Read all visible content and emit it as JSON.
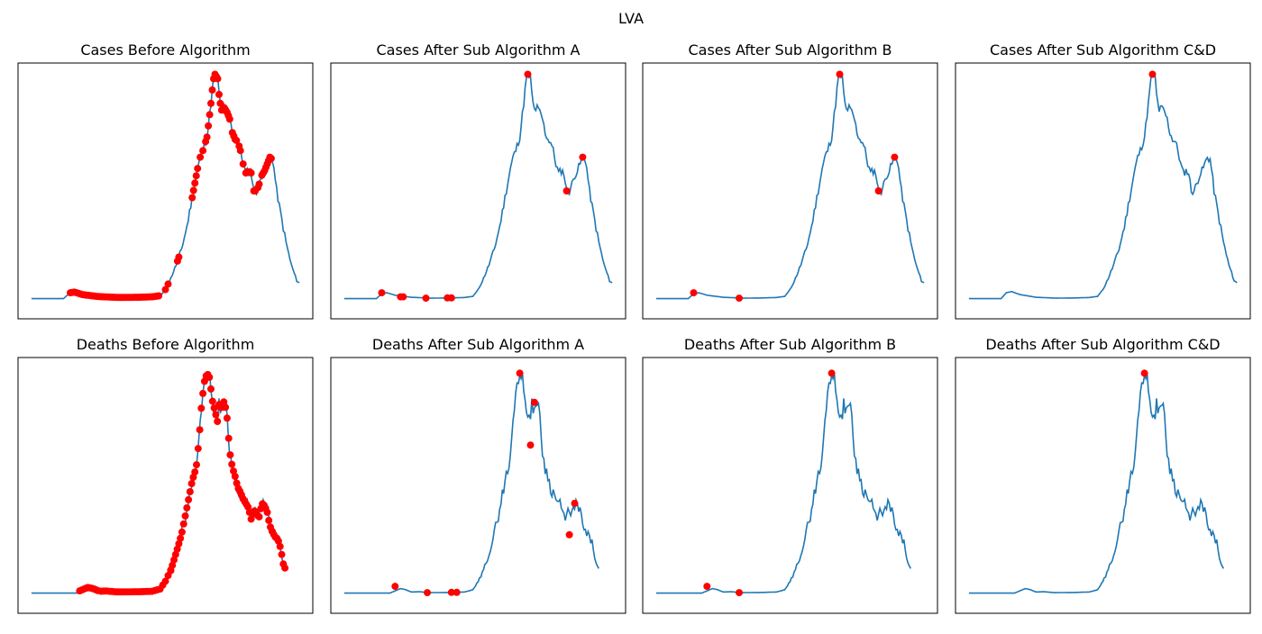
{
  "figure": {
    "suptitle": "LVA",
    "colors": {
      "line": "#1f77b4",
      "marker": "#ff0000",
      "frame": "#000000",
      "background": "#ffffff"
    }
  },
  "chart_data": [
    {
      "type": "line",
      "title": "Cases Before Algorithm",
      "x": [
        0,
        2,
        4,
        6,
        8,
        10,
        12,
        13,
        14,
        15,
        16,
        17,
        18,
        19,
        20,
        22,
        24,
        26,
        28,
        30,
        32,
        34,
        36,
        38,
        40,
        42,
        44,
        46,
        48,
        50,
        52,
        54,
        56,
        58,
        60,
        62,
        64,
        66,
        68,
        70,
        72,
        74,
        76,
        78,
        80,
        82,
        84,
        86,
        88,
        90,
        92,
        94,
        96,
        98,
        100,
        102,
        104,
        106,
        108,
        110,
        112,
        114,
        116,
        118,
        120,
        122,
        124,
        126,
        128,
        130,
        132,
        134,
        136,
        138,
        140,
        142,
        144,
        146,
        148,
        150,
        152,
        154,
        156,
        158,
        160,
        162,
        164,
        166,
        168,
        170,
        172,
        174,
        176,
        178,
        180,
        182,
        184,
        186,
        188,
        190,
        192,
        194,
        196,
        198,
        200,
        202,
        204
      ],
      "y": [
        0,
        0,
        0,
        0,
        0,
        0,
        0,
        1,
        2,
        2,
        1,
        1,
        1,
        1,
        0,
        0,
        0,
        0,
        0,
        0,
        0,
        0,
        0,
        0,
        0,
        0,
        0,
        0,
        0,
        0,
        0,
        0,
        0,
        0,
        0,
        0,
        0,
        0,
        0,
        0,
        0,
        0,
        0,
        0,
        0,
        0,
        0,
        0,
        0,
        0,
        0,
        0,
        0,
        0,
        0,
        0,
        0,
        0,
        0,
        0,
        0,
        0,
        0,
        0,
        0,
        0,
        0,
        0,
        0,
        0,
        0,
        0,
        0,
        0,
        0,
        0,
        0,
        0,
        0,
        0,
        0,
        0,
        0,
        0,
        0,
        0,
        0,
        0,
        0,
        0,
        0,
        0,
        0,
        0,
        0,
        0,
        0,
        0,
        0,
        0,
        0,
        0,
        0,
        0,
        0,
        0,
        0
      ],
      "series": [
        {
          "values_x": [
            0,
            20,
            25,
            30,
            35,
            40,
            45,
            50,
            55,
            60,
            65,
            70,
            75,
            80,
            85,
            90,
            95,
            100,
            105,
            110,
            115,
            120,
            125,
            130,
            135,
            140,
            145,
            150,
            155,
            160,
            165,
            170,
            175,
            180,
            185,
            190,
            195,
            200,
            204
          ],
          "values_y": [
            0,
            0,
            3,
            2,
            1,
            1,
            0,
            0,
            0,
            0,
            0,
            0,
            0,
            0,
            0,
            0,
            0,
            0,
            2,
            8,
            18,
            33,
            60,
            82,
            98,
            85,
            80,
            70,
            65,
            58,
            42,
            45,
            55,
            62,
            48,
            30,
            18,
            8,
            6
          ]
        }
      ],
      "markers_x": [
        29,
        30,
        31,
        32,
        33,
        34,
        35,
        36,
        37,
        38,
        39,
        40,
        41,
        42,
        43,
        44,
        45,
        46,
        47,
        48,
        49,
        50,
        52,
        54,
        56,
        58,
        60,
        62,
        64,
        66,
        68,
        70,
        72,
        74,
        76,
        78,
        80,
        82,
        84,
        86,
        88,
        90,
        92,
        94,
        96,
        98,
        100,
        105,
        108,
        118,
        119,
        126,
        127,
        128,
        132,
        133,
        134,
        135,
        136,
        137,
        138,
        139,
        140,
        141,
        142,
        143,
        144,
        145,
        146,
        147,
        148,
        150,
        152,
        154,
        156,
        158,
        160,
        162,
        166,
        168,
        170,
        172,
        174,
        176,
        178,
        180,
        182,
        184,
        186
      ],
      "markers_y": [
        3,
        3.5,
        3.5,
        3,
        3,
        2.5,
        2.5,
        2,
        2,
        2,
        2,
        1.5,
        1.5,
        1.5,
        1,
        1,
        1,
        1,
        1,
        1,
        1,
        1,
        0.5,
        0.5,
        0.5,
        0.5,
        0.5,
        0.5,
        0.5,
        0.5,
        0.5,
        0.5,
        0.5,
        0.5,
        0.5,
        0.5,
        0.5,
        0.5,
        0.5,
        0.5,
        0.5,
        0.5,
        0.5,
        0.5,
        0.5,
        0.5,
        0.5,
        12,
        17,
        33,
        34,
        65,
        66,
        66,
        85,
        81,
        83,
        89,
        94,
        92,
        95,
        100,
        97,
        99,
        98,
        95,
        88,
        86,
        85,
        83,
        86,
        80,
        73,
        70,
        68,
        57,
        55,
        56,
        47,
        56,
        55,
        58,
        60,
        62,
        60,
        58,
        64,
        62,
        61
      ],
      "ylim": [
        -5,
        105
      ],
      "xlim": [
        -5,
        210
      ]
    }
  ]
}
